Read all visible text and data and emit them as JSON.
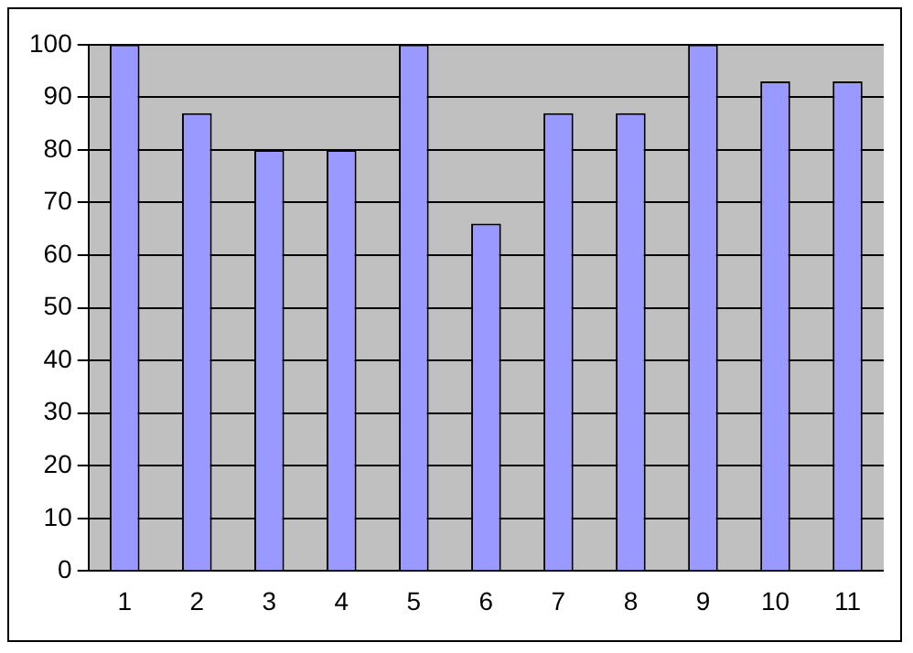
{
  "chart_data": {
    "type": "bar",
    "categories": [
      "1",
      "2",
      "3",
      "4",
      "5",
      "6",
      "7",
      "8",
      "9",
      "10",
      "11"
    ],
    "values": [
      100,
      87,
      80,
      80,
      100,
      66,
      87,
      87,
      100,
      93,
      93
    ],
    "color": "#9999ff",
    "ylim": [
      0,
      100
    ],
    "yticks": [
      0,
      10,
      20,
      30,
      40,
      50,
      60,
      70,
      80,
      90,
      100
    ],
    "grid": "y",
    "legend": false
  }
}
